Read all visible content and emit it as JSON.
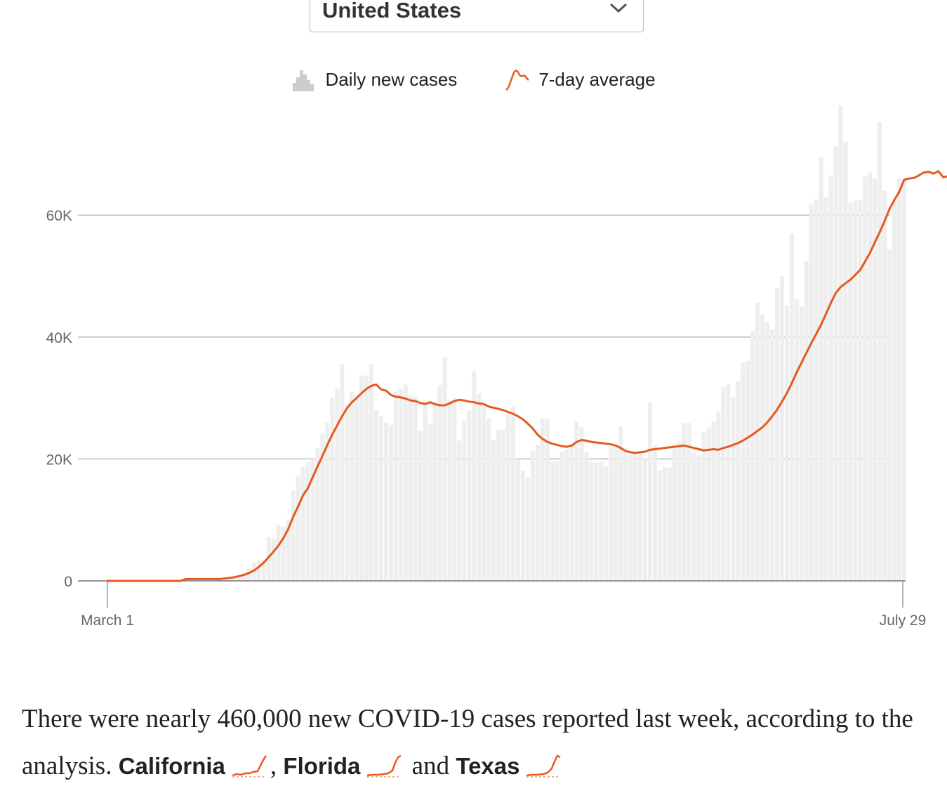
{
  "selector": {
    "value": "United States",
    "icon": "chevron-down-icon"
  },
  "legend": {
    "bars_label": "Daily new cases",
    "line_label": "7-day average",
    "bars_icon": "bar-histogram-icon",
    "line_icon": "line-sparkline-icon"
  },
  "colors": {
    "bars": "#eeeeee",
    "line": "#e55a1f",
    "grid": "#bbbbbb",
    "axis_text": "#666666"
  },
  "chart_data": {
    "type": "bar",
    "title": "",
    "xlabel": "",
    "ylabel": "",
    "x_ticks": [
      "March 1",
      "July 29"
    ],
    "y_ticks": [
      "0",
      "20K",
      "40K",
      "60K"
    ],
    "ylim": [
      0,
      78000
    ],
    "grid": true,
    "legend_position": "top-center",
    "series": [
      {
        "name": "Daily new cases",
        "kind": "bar",
        "values": [
          0,
          0,
          0,
          0,
          0,
          0,
          0,
          0,
          0,
          0,
          0,
          0,
          0,
          0,
          0,
          0,
          300,
          300,
          300,
          300,
          300,
          300,
          300,
          300,
          300,
          400,
          600,
          800,
          1200,
          2000,
          3000,
          3300,
          3500,
          7200,
          7000,
          9200,
          9000,
          10100,
          14800,
          17300,
          18700,
          19500,
          20000,
          21800,
          24300,
          26000,
          30000,
          31500,
          35600,
          29000,
          31000,
          30500,
          33600,
          33700,
          35600,
          28000,
          27000,
          26000,
          25600,
          31000,
          31500,
          32200,
          30400,
          30100,
          24600,
          29500,
          25800,
          29000,
          32100,
          36700,
          29700,
          30000,
          23000,
          26300,
          28000,
          34400,
          30700,
          29000,
          26700,
          23100,
          24800,
          24800,
          27400,
          28600,
          20000,
          18100,
          17000,
          21300,
          22300,
          26600,
          26600,
          19600,
          19600,
          21200,
          21500,
          22400,
          26100,
          25200,
          21100,
          19600,
          19400,
          19500,
          18800,
          21800,
          22000,
          25400,
          21800,
          20700,
          21000,
          21300,
          20100,
          29300,
          22200,
          18100,
          18700,
          18600,
          22500,
          22900,
          25900,
          25900,
          21000,
          20600,
          24400,
          25000,
          26100,
          27800,
          31800,
          32200,
          30200,
          32800,
          35800,
          36100,
          41000,
          45700,
          43600,
          42400,
          41200,
          48000,
          50000,
          45200,
          57000,
          46200,
          45000,
          52400,
          61700,
          62600,
          69500,
          63000,
          66500,
          71300,
          78300,
          72000,
          62000,
          62400,
          62500,
          66300,
          67000,
          66000,
          75300,
          64000,
          54400,
          62400,
          66000,
          66000
        ]
      },
      {
        "name": "7-day average",
        "kind": "line",
        "values": [
          0,
          0,
          0,
          0,
          0,
          0,
          0,
          0,
          0,
          0,
          0,
          0,
          0,
          0,
          0,
          0,
          300,
          300,
          300,
          300,
          300,
          300,
          300,
          300,
          400,
          500,
          600,
          800,
          1000,
          1300,
          1700,
          2300,
          3000,
          3900,
          4800,
          5800,
          7000,
          8500,
          10500,
          12200,
          14000,
          15200,
          17000,
          18800,
          20500,
          22300,
          24000,
          25500,
          27000,
          28300,
          29300,
          30000,
          30800,
          31500,
          32000,
          32200,
          31400,
          31200,
          30500,
          30200,
          30100,
          29900,
          29600,
          29500,
          29200,
          29000,
          29300,
          29000,
          28800,
          28800,
          29100,
          29500,
          29700,
          29600,
          29400,
          29300,
          29100,
          29000,
          28600,
          28400,
          28200,
          28000,
          27700,
          27400,
          27000,
          26500,
          25800,
          25000,
          24000,
          23300,
          22800,
          22500,
          22300,
          22100,
          22000,
          22200,
          22800,
          23100,
          23000,
          22800,
          22700,
          22600,
          22500,
          22400,
          22200,
          21800,
          21300,
          21100,
          21000,
          21100,
          21200,
          21500,
          21600,
          21700,
          21800,
          21900,
          22000,
          22100,
          22200,
          22000,
          21800,
          21600,
          21400,
          21500,
          21600,
          21500,
          21800,
          22000,
          22300,
          22600,
          23000,
          23500,
          24000,
          24600,
          25200,
          26000,
          27000,
          28100,
          29400,
          30800,
          32400,
          34200,
          35800,
          37400,
          39000,
          40500,
          42000,
          43800,
          45600,
          47200,
          48200,
          48800,
          49400,
          50200,
          51000,
          52400,
          53800,
          55500,
          57200,
          59000,
          61000,
          62500,
          63800,
          65800,
          66000,
          66100,
          66500,
          67000,
          67100,
          66800,
          67200,
          66200,
          66400,
          66800,
          65800,
          65800,
          65800
        ]
      }
    ]
  },
  "caption": {
    "text_1": "There were nearly 460,000 new COVID-19 cases reported last week, according to the analysis. ",
    "state_1": "California",
    "sep_1": ", ",
    "state_2": "Florida",
    "sep_2": " and ",
    "state_3": "Texas",
    "spark_icon": "trend-sparkline-icon"
  }
}
